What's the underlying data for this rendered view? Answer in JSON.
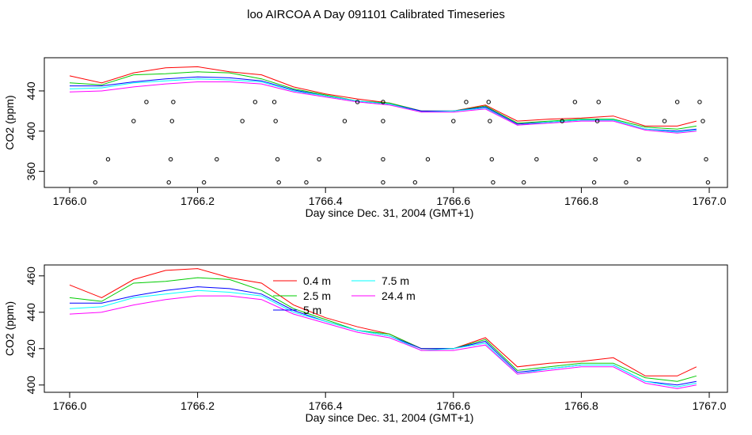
{
  "title": "loo AIRCOA A  Day 091101  Calibrated Timeseries",
  "chart_data": [
    {
      "type": "line",
      "xlabel": "Day since Dec. 31, 2004 (GMT+1)",
      "ylabel": "CO2 (ppm)",
      "xlim": [
        1766.0,
        1767.0
      ],
      "ylim": [
        344,
        473
      ],
      "xticks": [
        "1766.0",
        "1766.2",
        "1766.4",
        "1766.6",
        "1766.8",
        "1767.0"
      ],
      "yticks": [
        "360",
        "400",
        "440"
      ],
      "x": [
        1766.0,
        1766.05,
        1766.1,
        1766.15,
        1766.2,
        1766.25,
        1766.3,
        1766.35,
        1766.4,
        1766.45,
        1766.5,
        1766.55,
        1766.6,
        1766.65,
        1766.7,
        1766.75,
        1766.8,
        1766.85,
        1766.9,
        1766.95,
        1766.98
      ],
      "series": [
        {
          "color": "#ff0000",
          "values": [
            455,
            448,
            458,
            463,
            464,
            459,
            456,
            444,
            437,
            432,
            428,
            420,
            420,
            426,
            410,
            412,
            413,
            415,
            405,
            405,
            410
          ]
        },
        {
          "color": "#00cc00",
          "values": [
            448,
            446,
            456,
            457,
            459,
            458,
            452,
            442,
            436,
            430,
            428,
            420,
            420,
            425,
            408,
            410,
            412,
            412,
            404,
            402,
            405
          ]
        },
        {
          "color": "#0000ff",
          "values": [
            445,
            445,
            449,
            452,
            454,
            453,
            450,
            441,
            435,
            430,
            427,
            420,
            420,
            424,
            407,
            409,
            411,
            411,
            402,
            400,
            402
          ]
        },
        {
          "color": "#00ffff",
          "values": [
            442,
            443,
            448,
            450,
            452,
            451,
            449,
            440,
            435,
            430,
            427,
            419,
            420,
            423,
            406,
            409,
            411,
            411,
            402,
            399,
            401
          ]
        },
        {
          "color": "#ff00ff",
          "values": [
            439,
            440,
            444,
            447,
            449,
            449,
            447,
            439,
            434,
            429,
            426,
            419,
            419,
            422,
            406,
            408,
            410,
            410,
            401,
            398,
            400
          ]
        }
      ],
      "points": [
        {
          "x": 1766.04,
          "y": 349
        },
        {
          "x": 1766.06,
          "y": 372
        },
        {
          "x": 1766.1,
          "y": 410
        },
        {
          "x": 1766.12,
          "y": 429
        },
        {
          "x": 1766.155,
          "y": 349
        },
        {
          "x": 1766.158,
          "y": 372
        },
        {
          "x": 1766.16,
          "y": 410
        },
        {
          "x": 1766.162,
          "y": 429
        },
        {
          "x": 1766.21,
          "y": 349
        },
        {
          "x": 1766.23,
          "y": 372
        },
        {
          "x": 1766.27,
          "y": 410
        },
        {
          "x": 1766.29,
          "y": 429
        },
        {
          "x": 1766.32,
          "y": 429
        },
        {
          "x": 1766.322,
          "y": 410
        },
        {
          "x": 1766.325,
          "y": 372
        },
        {
          "x": 1766.327,
          "y": 349
        },
        {
          "x": 1766.37,
          "y": 349
        },
        {
          "x": 1766.39,
          "y": 372
        },
        {
          "x": 1766.43,
          "y": 410
        },
        {
          "x": 1766.45,
          "y": 429
        },
        {
          "x": 1766.49,
          "y": 349
        },
        {
          "x": 1766.49,
          "y": 372
        },
        {
          "x": 1766.49,
          "y": 410
        },
        {
          "x": 1766.49,
          "y": 429
        },
        {
          "x": 1766.54,
          "y": 349
        },
        {
          "x": 1766.56,
          "y": 372
        },
        {
          "x": 1766.6,
          "y": 410
        },
        {
          "x": 1766.62,
          "y": 429
        },
        {
          "x": 1766.655,
          "y": 429
        },
        {
          "x": 1766.657,
          "y": 410
        },
        {
          "x": 1766.66,
          "y": 372
        },
        {
          "x": 1766.662,
          "y": 349
        },
        {
          "x": 1766.71,
          "y": 349
        },
        {
          "x": 1766.73,
          "y": 372
        },
        {
          "x": 1766.77,
          "y": 410
        },
        {
          "x": 1766.79,
          "y": 429
        },
        {
          "x": 1766.82,
          "y": 349
        },
        {
          "x": 1766.822,
          "y": 372
        },
        {
          "x": 1766.825,
          "y": 410
        },
        {
          "x": 1766.827,
          "y": 429
        },
        {
          "x": 1766.87,
          "y": 349
        },
        {
          "x": 1766.89,
          "y": 372
        },
        {
          "x": 1766.93,
          "y": 410
        },
        {
          "x": 1766.95,
          "y": 429
        },
        {
          "x": 1766.985,
          "y": 429
        },
        {
          "x": 1766.99,
          "y": 410
        },
        {
          "x": 1766.995,
          "y": 372
        },
        {
          "x": 1766.998,
          "y": 349
        }
      ]
    },
    {
      "type": "line",
      "xlabel": "Day since Dec. 31, 2004 (GMT+1)",
      "ylabel": "CO2 (ppm)",
      "xlim": [
        1766.0,
        1767.0
      ],
      "ylim": [
        396,
        466
      ],
      "xticks": [
        "1766.0",
        "1766.2",
        "1766.4",
        "1766.6",
        "1766.8",
        "1767.0"
      ],
      "yticks": [
        "400",
        "420",
        "440",
        "460"
      ],
      "legend": {
        "position": "top-center",
        "entries": [
          "0.4 m",
          "2.5 m",
          "5 m",
          "7.5 m",
          "24.4 m"
        ]
      },
      "x": [
        1766.0,
        1766.05,
        1766.1,
        1766.15,
        1766.2,
        1766.25,
        1766.3,
        1766.35,
        1766.4,
        1766.45,
        1766.5,
        1766.55,
        1766.6,
        1766.65,
        1766.7,
        1766.75,
        1766.8,
        1766.85,
        1766.9,
        1766.95,
        1766.98
      ],
      "series": [
        {
          "name": "0.4 m",
          "color": "#ff0000",
          "values": [
            455,
            448,
            458,
            463,
            464,
            459,
            456,
            444,
            437,
            432,
            428,
            420,
            420,
            426,
            410,
            412,
            413,
            415,
            405,
            405,
            410
          ]
        },
        {
          "name": "2.5 m",
          "color": "#00cc00",
          "values": [
            448,
            446,
            456,
            457,
            459,
            458,
            452,
            442,
            436,
            430,
            428,
            420,
            420,
            425,
            408,
            410,
            412,
            412,
            404,
            402,
            405
          ]
        },
        {
          "name": "5 m",
          "color": "#0000ff",
          "values": [
            445,
            445,
            449,
            452,
            454,
            453,
            450,
            441,
            435,
            430,
            427,
            420,
            420,
            424,
            407,
            409,
            411,
            411,
            402,
            400,
            402
          ]
        },
        {
          "name": "7.5 m",
          "color": "#00ffff",
          "values": [
            442,
            443,
            448,
            450,
            452,
            451,
            449,
            440,
            435,
            430,
            427,
            419,
            420,
            423,
            406,
            409,
            411,
            411,
            402,
            399,
            401
          ]
        },
        {
          "name": "24.4 m",
          "color": "#ff00ff",
          "values": [
            439,
            440,
            444,
            447,
            449,
            449,
            447,
            439,
            434,
            429,
            426,
            419,
            419,
            422,
            406,
            408,
            410,
            410,
            401,
            398,
            400
          ]
        }
      ]
    }
  ]
}
